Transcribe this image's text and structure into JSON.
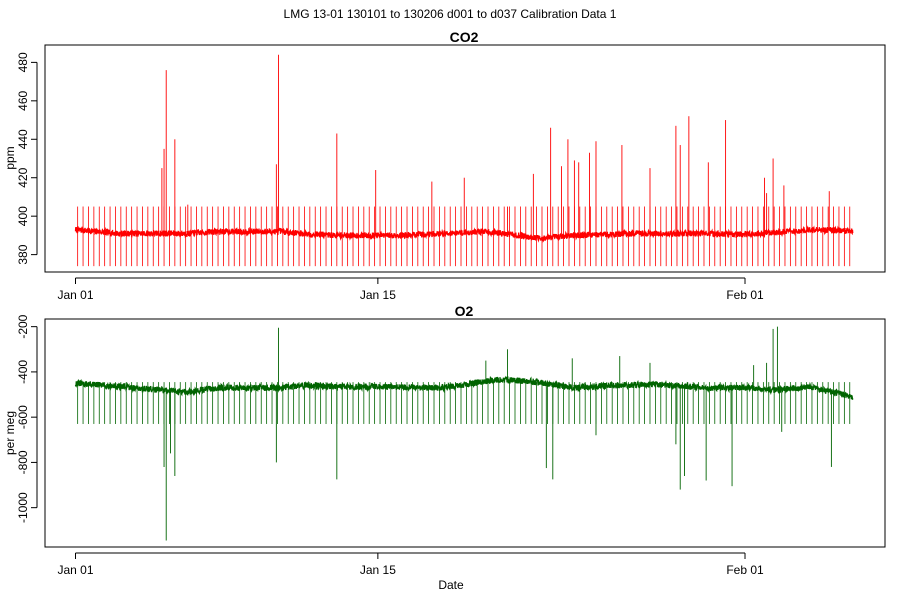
{
  "figure_title": "LMG   13-01    130101 to 130206    d001 to d037   Calibration Data 1",
  "chart_data": [
    {
      "type": "line",
      "title": "CO2",
      "xlabel": "",
      "ylabel": "ppm",
      "x_range_days": [
        1,
        37
      ],
      "x_tick_labels": [
        "Jan 01",
        "Jan 15",
        "Feb 01"
      ],
      "x_ticks_day": [
        1,
        15,
        32
      ],
      "ylim": [
        372,
        488
      ],
      "y_ticks": [
        380,
        400,
        420,
        440,
        460,
        480
      ],
      "y_tick_labels": [
        "380",
        "400",
        "420",
        "440",
        "460",
        "480"
      ],
      "color": "#ff0000",
      "baseline": [
        [
          1.0,
          393
        ],
        [
          3.0,
          391
        ],
        [
          5.0,
          391
        ],
        [
          6.2,
          391
        ],
        [
          7.5,
          392
        ],
        [
          10.5,
          392
        ],
        [
          11.5,
          391
        ],
        [
          13.0,
          390
        ],
        [
          16.0,
          390
        ],
        [
          20.0,
          392
        ],
        [
          21.5,
          390
        ],
        [
          22.5,
          388.5
        ],
        [
          24.0,
          390
        ],
        [
          27.0,
          391
        ],
        [
          30.0,
          391
        ],
        [
          32.0,
          390.5
        ],
        [
          34.0,
          392
        ],
        [
          35.5,
          393
        ],
        [
          37.0,
          392
        ]
      ],
      "calibration": {
        "start_day": 1.1,
        "end_day": 36.9,
        "interval_day": 0.25,
        "high": 405,
        "low": 374
      },
      "spikes": [
        [
          5.0,
          425
        ],
        [
          5.1,
          435
        ],
        [
          5.2,
          476
        ],
        [
          5.6,
          440
        ],
        [
          6.2,
          406
        ],
        [
          10.3,
          427
        ],
        [
          10.4,
          484
        ],
        [
          13.1,
          443
        ],
        [
          14.9,
          424
        ],
        [
          17.5,
          418
        ],
        [
          19.0,
          420
        ],
        [
          21.0,
          405
        ],
        [
          22.2,
          422
        ],
        [
          23.0,
          446
        ],
        [
          23.5,
          426
        ],
        [
          23.8,
          440
        ],
        [
          24.1,
          429
        ],
        [
          24.3,
          428
        ],
        [
          24.8,
          433
        ],
        [
          25.1,
          439
        ],
        [
          26.3,
          437
        ],
        [
          27.6,
          425
        ],
        [
          28.8,
          447
        ],
        [
          29.0,
          437
        ],
        [
          29.4,
          452
        ],
        [
          30.3,
          428
        ],
        [
          31.1,
          450
        ],
        [
          32.9,
          420
        ],
        [
          33.0,
          412
        ],
        [
          33.3,
          430
        ],
        [
          33.8,
          416
        ],
        [
          35.9,
          413
        ]
      ]
    },
    {
      "type": "line",
      "title": "O2",
      "xlabel": "Date",
      "ylabel": "per meg",
      "x_range_days": [
        1,
        37
      ],
      "x_tick_labels": [
        "Jan 01",
        "Jan 15",
        "Feb 01"
      ],
      "x_ticks_day": [
        1,
        15,
        32
      ],
      "ylim": [
        -1165,
        -175
      ],
      "y_ticks": [
        -1000,
        -800,
        -600,
        -400,
        -200
      ],
      "y_tick_labels": [
        "-1000",
        "-800",
        "-600",
        "-400",
        "-200"
      ],
      "color": "#006400",
      "baseline": [
        [
          1.0,
          -450
        ],
        [
          3.0,
          -465
        ],
        [
          5.0,
          -480
        ],
        [
          6.2,
          -490
        ],
        [
          7.5,
          -470
        ],
        [
          10.5,
          -470
        ],
        [
          11.5,
          -460
        ],
        [
          14.0,
          -465
        ],
        [
          18.0,
          -470
        ],
        [
          20.5,
          -435
        ],
        [
          22.0,
          -440
        ],
        [
          24.0,
          -470
        ],
        [
          26.0,
          -460
        ],
        [
          28.0,
          -455
        ],
        [
          30.0,
          -470
        ],
        [
          32.0,
          -470
        ],
        [
          33.5,
          -480
        ],
        [
          35.0,
          -465
        ],
        [
          37.0,
          -510
        ]
      ],
      "calibration": {
        "start_day": 1.1,
        "end_day": 36.9,
        "interval_day": 0.25,
        "high": -445,
        "low": -630
      },
      "spikes": [
        [
          5.1,
          -820
        ],
        [
          5.2,
          -1145
        ],
        [
          5.4,
          -760
        ],
        [
          5.6,
          -860
        ],
        [
          10.3,
          -800
        ],
        [
          10.4,
          -205
        ],
        [
          13.1,
          -875
        ],
        [
          20.0,
          -350
        ],
        [
          21.0,
          -300
        ],
        [
          22.8,
          -825
        ],
        [
          23.1,
          -875
        ],
        [
          24.0,
          -340
        ],
        [
          25.1,
          -680
        ],
        [
          26.2,
          -330
        ],
        [
          27.6,
          -360
        ],
        [
          28.8,
          -720
        ],
        [
          29.0,
          -920
        ],
        [
          29.2,
          -860
        ],
        [
          30.2,
          -880
        ],
        [
          31.4,
          -905
        ],
        [
          32.4,
          -370
        ],
        [
          33.0,
          -360
        ],
        [
          33.3,
          -210
        ],
        [
          33.5,
          -200
        ],
        [
          33.7,
          -665
        ],
        [
          36.0,
          -820
        ]
      ]
    }
  ]
}
